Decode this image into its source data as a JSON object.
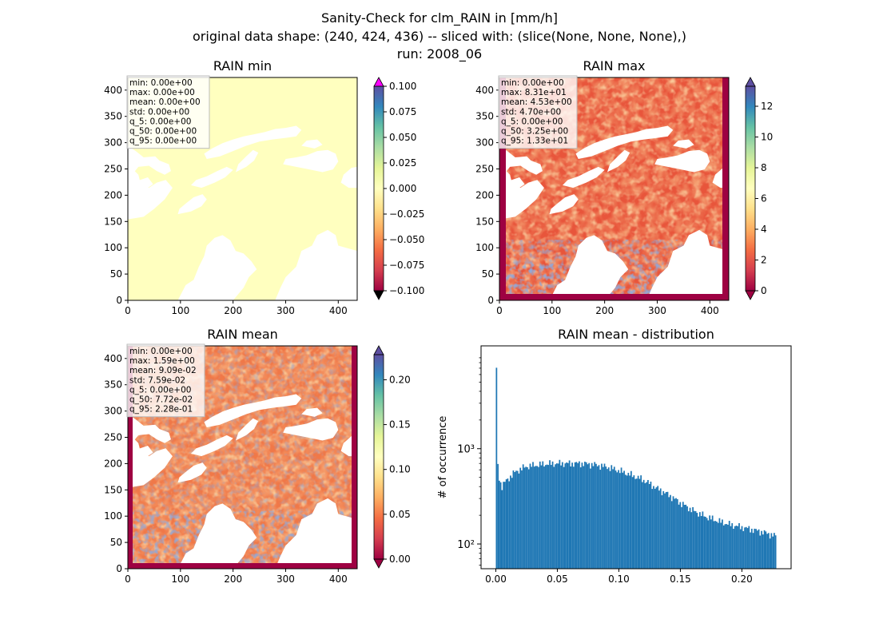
{
  "figure": {
    "title_line1": "Sanity-Check for clm_RAIN in [mm/h]",
    "title_line2": "original data shape: (240, 424, 436) -- sliced with: (slice(None, None, None),)",
    "title_line3": "run: 2008_06"
  },
  "chart_data": [
    {
      "type": "heatmap",
      "title": "RAIN min",
      "xlim": [
        0,
        436
      ],
      "ylim": [
        0,
        424
      ],
      "x_ticks": [
        "0",
        "100",
        "200",
        "300",
        "400"
      ],
      "y_ticks": [
        "0",
        "50",
        "100",
        "150",
        "200",
        "250",
        "300",
        "350",
        "400"
      ],
      "colormap": "Spectral",
      "colorbar": {
        "range": [
          -0.1,
          0.1
        ],
        "extend": "both",
        "ticks": [
          "0.100",
          "0.075",
          "0.050",
          "0.025",
          "0.000",
          "−0.025",
          "−0.050",
          "−0.075",
          "−0.100"
        ]
      },
      "stats": [
        "min: 0.00e+00",
        "max: 0.00e+00",
        "mean: 0.00e+00",
        "std: 0.00e+00",
        "q_5: 0.00e+00",
        "q_50: 0.00e+00",
        "q_95: 0.00e+00"
      ]
    },
    {
      "type": "heatmap",
      "title": "RAIN max",
      "xlim": [
        0,
        436
      ],
      "ylim": [
        0,
        424
      ],
      "x_ticks": [
        "0",
        "100",
        "200",
        "300",
        "400"
      ],
      "y_ticks": [
        "0",
        "50",
        "100",
        "150",
        "200",
        "250",
        "300",
        "350",
        "400"
      ],
      "colormap": "Spectral",
      "colorbar": {
        "range": [
          0,
          13.3
        ],
        "extend": "both",
        "ticks": [
          "12",
          "10",
          "8",
          "6",
          "4",
          "2",
          "0"
        ]
      },
      "stats": [
        "min: 0.00e+00",
        "max: 8.31e+01",
        "mean: 4.53e+00",
        "std: 4.70e+00",
        "q_5: 0.00e+00",
        "q_50: 3.25e+00",
        "q_95: 1.33e+01"
      ]
    },
    {
      "type": "heatmap",
      "title": "RAIN mean",
      "xlim": [
        0,
        436
      ],
      "ylim": [
        0,
        424
      ],
      "x_ticks": [
        "0",
        "100",
        "200",
        "300",
        "400"
      ],
      "y_ticks": [
        "0",
        "50",
        "100",
        "150",
        "200",
        "250",
        "300",
        "350",
        "400"
      ],
      "colormap": "Spectral",
      "colorbar": {
        "range": [
          0,
          0.228
        ],
        "extend": "both",
        "ticks": [
          "0.20",
          "0.15",
          "0.10",
          "0.05",
          "0.00"
        ]
      },
      "stats": [
        "min: 0.00e+00",
        "max: 1.59e+00",
        "mean: 9.09e-02",
        "std: 7.59e-02",
        "q_5: 0.00e+00",
        "q_50: 7.72e-02",
        "q_95: 2.28e-01"
      ]
    },
    {
      "type": "bar",
      "title": "RAIN mean - distribution",
      "ylabel": "# of occurrence",
      "yscale": "log",
      "xlim": [
        -0.012,
        0.24
      ],
      "ylim": [
        55,
        12000
      ],
      "x_ticks": [
        "0.00",
        "0.05",
        "0.10",
        "0.15",
        "0.20"
      ],
      "y_ticks": [
        "10²",
        "10³"
      ],
      "color": "#1f77b4",
      "bins": {
        "start": 0.0,
        "end": 0.228,
        "count": 200
      },
      "envelope": [
        [
          0.0,
          6800
        ],
        [
          0.0013,
          720
        ],
        [
          0.003,
          470
        ],
        [
          0.005,
          400
        ],
        [
          0.007,
          440
        ],
        [
          0.01,
          480
        ],
        [
          0.015,
          560
        ],
        [
          0.02,
          610
        ],
        [
          0.025,
          650
        ],
        [
          0.03,
          665
        ],
        [
          0.04,
          690
        ],
        [
          0.05,
          700
        ],
        [
          0.06,
          700
        ],
        [
          0.07,
          700
        ],
        [
          0.08,
          680
        ],
        [
          0.09,
          645
        ],
        [
          0.1,
          590
        ],
        [
          0.11,
          530
        ],
        [
          0.12,
          470
        ],
        [
          0.13,
          390
        ],
        [
          0.14,
          330
        ],
        [
          0.15,
          270
        ],
        [
          0.16,
          225
        ],
        [
          0.17,
          195
        ],
        [
          0.18,
          175
        ],
        [
          0.19,
          160
        ],
        [
          0.2,
          150
        ],
        [
          0.21,
          140
        ],
        [
          0.22,
          130
        ],
        [
          0.228,
          120
        ]
      ]
    }
  ]
}
